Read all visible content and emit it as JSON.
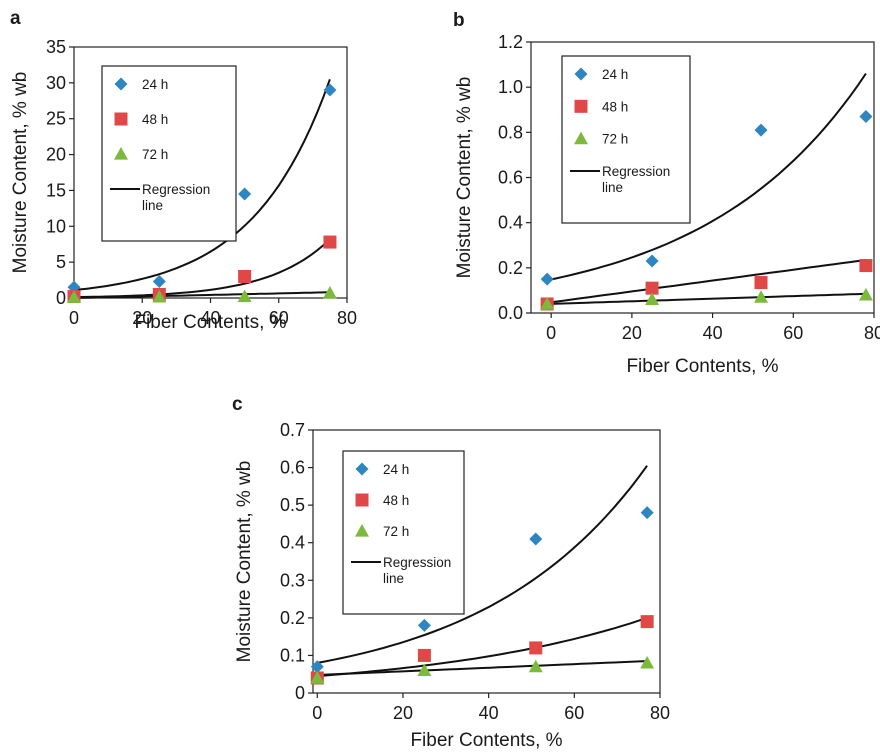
{
  "chart_data": [
    {
      "panel": "a",
      "type": "scatter",
      "xlabel": "Fiber Contents, %",
      "ylabel": "Moisture Content, % wb",
      "xlim": [
        0,
        80
      ],
      "ylim": [
        0,
        35
      ],
      "xticks": [
        0,
        20,
        40,
        60,
        80
      ],
      "yticks": [
        0,
        5,
        10,
        15,
        20,
        25,
        30,
        35
      ],
      "legend": {
        "placement": "top-left",
        "regression_label": "Regression line"
      },
      "series": [
        {
          "name": "24 h",
          "marker": "diamond",
          "color": "#2e86c1",
          "x": [
            0,
            25,
            50,
            75
          ],
          "y": [
            1.5,
            2.3,
            14.5,
            29
          ]
        },
        {
          "name": "48 h",
          "marker": "square",
          "color": "#e04848",
          "x": [
            0,
            25,
            50,
            75
          ],
          "y": [
            0.2,
            0.5,
            3.0,
            7.8
          ]
        },
        {
          "name": "72 h",
          "marker": "triangle",
          "color": "#7cba3c",
          "x": [
            0,
            25,
            50,
            75
          ],
          "y": [
            0.1,
            0.15,
            0.2,
            0.7
          ]
        }
      ],
      "regression": [
        {
          "fit": "exponential",
          "x0": 0,
          "x1": 75,
          "y0": 1.1,
          "y1": 30.5
        },
        {
          "fit": "exponential",
          "x0": 0,
          "x1": 75,
          "y0": 0.12,
          "y1": 8.2
        },
        {
          "fit": "linear",
          "x0": 0,
          "x1": 75,
          "y0": 0.0,
          "y1": 0.8
        }
      ]
    },
    {
      "panel": "b",
      "type": "scatter",
      "xlabel": "Fiber Contents, %",
      "ylabel": "Moisture Content, % wb",
      "xlim": [
        -5,
        80
      ],
      "ylim": [
        0,
        1.2
      ],
      "xticks": [
        0,
        20,
        40,
        60,
        80
      ],
      "yticks": [
        "0.0",
        "0.2",
        "0.4",
        "0.6",
        "0.8",
        "1.0",
        "1.2"
      ],
      "legend": {
        "placement": "top-left",
        "regression_label": "Regression line"
      },
      "series": [
        {
          "name": "24 h",
          "marker": "diamond",
          "color": "#2e86c1",
          "x": [
            -1,
            25,
            52,
            78
          ],
          "y": [
            0.15,
            0.23,
            0.81,
            0.87
          ]
        },
        {
          "name": "48 h",
          "marker": "square",
          "color": "#e04848",
          "x": [
            -1,
            25,
            52,
            78
          ],
          "y": [
            0.04,
            0.11,
            0.135,
            0.21
          ]
        },
        {
          "name": "72 h",
          "marker": "triangle",
          "color": "#7cba3c",
          "x": [
            -1,
            25,
            52,
            78
          ],
          "y": [
            0.04,
            0.06,
            0.07,
            0.08
          ]
        }
      ],
      "regression": [
        {
          "fit": "exponential",
          "x0": -1,
          "x1": 78,
          "y0": 0.145,
          "y1": 1.06
        },
        {
          "fit": "linear",
          "x0": -1,
          "x1": 78,
          "y0": 0.045,
          "y1": 0.235
        },
        {
          "fit": "linear",
          "x0": -1,
          "x1": 78,
          "y0": 0.04,
          "y1": 0.085
        }
      ]
    },
    {
      "panel": "c",
      "type": "scatter",
      "xlabel": "Fiber Contents, %",
      "ylabel": "Moisture Content, % wb",
      "xlim": [
        -1,
        80
      ],
      "ylim": [
        0,
        0.7
      ],
      "xticks": [
        0,
        20,
        40,
        60,
        80
      ],
      "yticks": [
        0,
        0.1,
        0.2,
        0.3,
        0.4,
        0.5,
        0.6,
        0.7
      ],
      "legend": {
        "placement": "top-left",
        "regression_label": "Regression line"
      },
      "series": [
        {
          "name": "24 h",
          "marker": "diamond",
          "color": "#2e86c1",
          "x": [
            0,
            25,
            51,
            77
          ],
          "y": [
            0.07,
            0.18,
            0.41,
            0.48
          ]
        },
        {
          "name": "48 h",
          "marker": "square",
          "color": "#e04848",
          "x": [
            0,
            25,
            51,
            77
          ],
          "y": [
            0.04,
            0.1,
            0.12,
            0.19
          ]
        },
        {
          "name": "72 h",
          "marker": "triangle",
          "color": "#7cba3c",
          "x": [
            0,
            25,
            51,
            77
          ],
          "y": [
            0.04,
            0.06,
            0.07,
            0.08
          ]
        }
      ],
      "regression": [
        {
          "fit": "exponential",
          "x0": 0,
          "x1": 77,
          "y0": 0.08,
          "y1": 0.605
        },
        {
          "fit": "exponential",
          "x0": 0,
          "x1": 77,
          "y0": 0.045,
          "y1": 0.2
        },
        {
          "fit": "linear",
          "x0": 0,
          "x1": 77,
          "y0": 0.048,
          "y1": 0.085
        }
      ]
    }
  ]
}
